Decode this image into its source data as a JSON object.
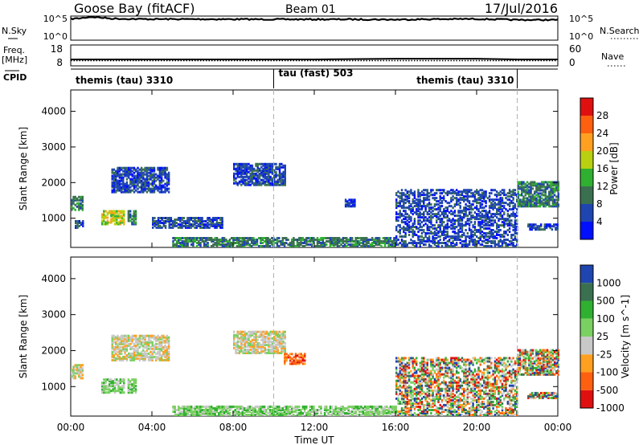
{
  "header": {
    "station": "Goose Bay (fitACF)",
    "beam": "Beam 01",
    "date": "17/Jul/2016"
  },
  "time_axis": {
    "label": "Time UT",
    "ticks": [
      "00:00",
      "04:00",
      "08:00",
      "12:00",
      "16:00",
      "20:00",
      "00:00"
    ],
    "range_hours": [
      0,
      24
    ]
  },
  "strips": {
    "nsky": {
      "left_label": "N.Sky",
      "right_label": "N.Search",
      "left_ticks": [
        "10^5",
        "10^0"
      ],
      "right_ticks": [
        "10^5",
        "10^0"
      ]
    },
    "freq": {
      "left_label": "Freq.",
      "left_unit": "[MHz]",
      "right_label": "Nave",
      "left_ticks": [
        "18",
        "8"
      ],
      "right_ticks": [
        "60",
        "0"
      ]
    },
    "cpid": {
      "label": "CPID",
      "segments": [
        {
          "label": "themis (tau) 3310",
          "start_h": 0,
          "end_h": 10
        },
        {
          "label": "tau (fast) 503",
          "start_h": 10,
          "end_h": 22
        },
        {
          "label": "themis (tau) 3310",
          "start_h": 22,
          "end_h": 24
        }
      ]
    }
  },
  "panels": {
    "power": {
      "ylabel": "Slant Range [km]",
      "yticks": [
        "1000",
        "2000",
        "3000",
        "4000"
      ],
      "colorbar_label": "Power [dB]",
      "colorbar_ticks": [
        "4",
        "8",
        "12",
        "16",
        "20",
        "24",
        "28"
      ],
      "colors": [
        "#0010ff",
        "#1f45b0",
        "#3a7050",
        "#30b030",
        "#b8d010",
        "#ffa020",
        "#ff6010",
        "#e01010"
      ]
    },
    "velocity": {
      "ylabel": "Slant Range [km]",
      "yticks": [
        "1000",
        "2000",
        "3000",
        "4000"
      ],
      "colorbar_label": "Velocity [m s^-1]",
      "colorbar_ticks": [
        "1000",
        "500",
        "100",
        "25",
        "-25",
        "-100",
        "-500",
        "-1000"
      ],
      "colors": [
        "#1f45b0",
        "#3a7050",
        "#30b030",
        "#7ad060",
        "#c8c8c8",
        "#ffa020",
        "#ff6010",
        "#e01010"
      ]
    }
  },
  "chart_data": [
    {
      "type": "line",
      "title": "Goose Bay (fitACF)",
      "subtitle": "N.Sky / N.Search",
      "xlabel": "Time UT",
      "ylabel": "N.Sky",
      "series": [
        {
          "name": "N.Sky",
          "x": [
            0,
            0.5,
            1,
            1.5,
            2,
            3,
            4,
            6,
            8,
            10,
            12,
            14,
            16,
            18,
            20,
            22,
            23,
            24
          ],
          "values": [
            100000,
            150000,
            300000,
            200000,
            120000,
            100000,
            90000,
            90000,
            85000,
            80000,
            80000,
            80000,
            70000,
            90000,
            100000,
            60000,
            60000,
            60000
          ]
        }
      ]
    },
    {
      "type": "line",
      "subtitle": "Freq. / Nave",
      "xlabel": "Time UT",
      "ylabel": "Freq. [MHz]",
      "ylim": [
        8,
        18
      ],
      "series": [
        {
          "name": "Freq.",
          "x": [
            0,
            4,
            8,
            12,
            16,
            20,
            22,
            24
          ],
          "values": [
            10.4,
            10.4,
            10.4,
            10.4,
            10.8,
            10.8,
            10.4,
            10.4
          ]
        }
      ]
    },
    {
      "type": "heatmap",
      "subtitle": "Power",
      "xlabel": "Time UT",
      "ylabel": "Slant Range [km]",
      "xlim": [
        0,
        24
      ],
      "ylim": [
        180,
        4600
      ],
      "colorbar": {
        "label": "Power [dB]",
        "ticks": [
          4,
          8,
          12,
          16,
          20,
          24,
          28
        ]
      },
      "regions": [
        {
          "t": [
            0.0,
            0.6
          ],
          "r": [
            1200,
            1600
          ],
          "value": 8
        },
        {
          "t": [
            0.2,
            0.6
          ],
          "r": [
            700,
            900
          ],
          "value": 6
        },
        {
          "t": [
            1.5,
            2.6
          ],
          "r": [
            800,
            1200
          ],
          "value": 16
        },
        {
          "t": [
            2.8,
            3.2
          ],
          "r": [
            800,
            1200
          ],
          "value": 8
        },
        {
          "t": [
            2.0,
            4.8
          ],
          "r": [
            1700,
            2400
          ],
          "value": 6
        },
        {
          "t": [
            4.0,
            7.5
          ],
          "r": [
            700,
            1000
          ],
          "value": 6
        },
        {
          "t": [
            8.0,
            10.6
          ],
          "r": [
            1900,
            2500
          ],
          "value": 7
        },
        {
          "t": [
            5.0,
            16.0
          ],
          "r": [
            180,
            450
          ],
          "value": 8
        },
        {
          "t": [
            13.5,
            14.0
          ],
          "r": [
            1300,
            1500
          ],
          "value": 6
        },
        {
          "t": [
            16.0,
            22.0
          ],
          "r": [
            180,
            1800
          ],
          "value": 5
        },
        {
          "t": [
            22.0,
            24.0
          ],
          "r": [
            1300,
            2000
          ],
          "value": 8
        },
        {
          "t": [
            22.5,
            24.0
          ],
          "r": [
            650,
            800
          ],
          "value": 6
        }
      ]
    },
    {
      "type": "heatmap",
      "subtitle": "Velocity",
      "xlabel": "Time UT",
      "ylabel": "Slant Range [km]",
      "xlim": [
        0,
        24
      ],
      "ylim": [
        180,
        4600
      ],
      "colorbar": {
        "label": "Velocity [m s^-1]",
        "ticks": [
          1000,
          500,
          100,
          25,
          -25,
          -100,
          -500,
          -1000
        ]
      },
      "regions": [
        {
          "t": [
            0.0,
            0.6
          ],
          "r": [
            1200,
            1600
          ],
          "value": 0
        },
        {
          "t": [
            1.5,
            2.6
          ],
          "r": [
            800,
            1200
          ],
          "value": 60
        },
        {
          "t": [
            2.8,
            3.2
          ],
          "r": [
            800,
            1200
          ],
          "value": 60
        },
        {
          "t": [
            2.0,
            4.8
          ],
          "r": [
            1700,
            2400
          ],
          "value": 0
        },
        {
          "t": [
            8.0,
            10.6
          ],
          "r": [
            1900,
            2500
          ],
          "value": 0
        },
        {
          "t": [
            10.5,
            11.5
          ],
          "r": [
            1600,
            1900
          ],
          "value": -150
        },
        {
          "t": [
            5.0,
            16.0
          ],
          "r": [
            180,
            450
          ],
          "value": 50
        },
        {
          "t": [
            16.0,
            22.0
          ],
          "r": [
            180,
            1800
          ],
          "value": 0
        },
        {
          "t": [
            22.0,
            24.0
          ],
          "r": [
            1300,
            2000
          ],
          "value": 0
        },
        {
          "t": [
            22.5,
            24.0
          ],
          "r": [
            650,
            800
          ],
          "value": 0
        }
      ]
    }
  ]
}
